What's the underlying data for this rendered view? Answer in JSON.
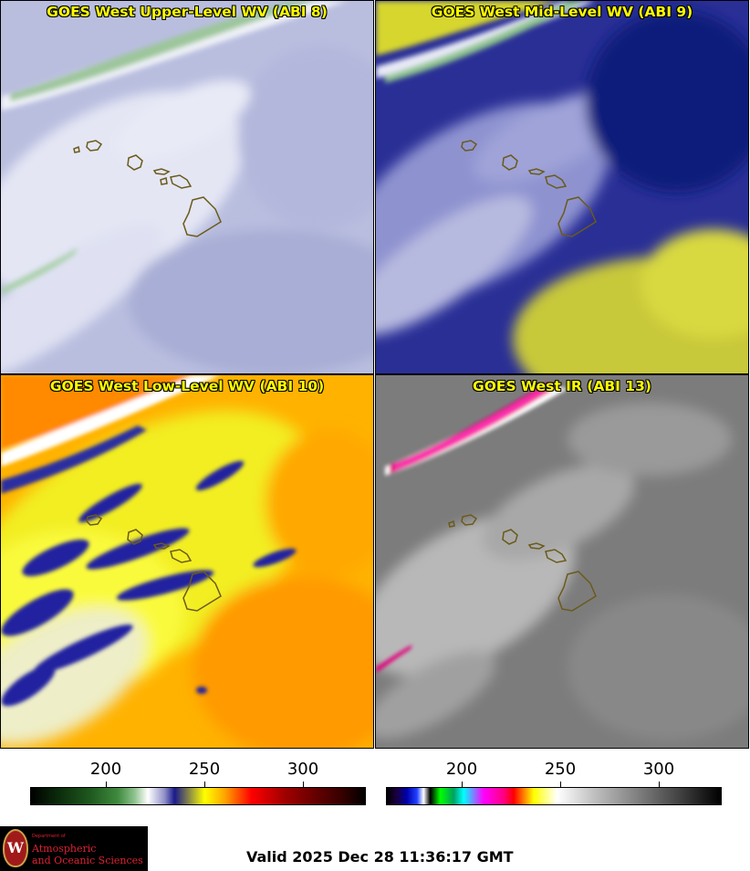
{
  "panels": [
    {
      "title": "GOES West Upper-Level WV (ABI 8)",
      "band": "ABI 8",
      "palette": "lavender"
    },
    {
      "title": "GOES West Mid-Level WV (ABI 9)",
      "band": "ABI 9",
      "palette": "navy-yellow"
    },
    {
      "title": "GOES West Low-Level WV (ABI 10)",
      "band": "ABI 10",
      "palette": "yellow-orange"
    },
    {
      "title": "GOES West IR (ABI 13)",
      "band": "ABI 13",
      "palette": "grayscale"
    }
  ],
  "colorbars": [
    {
      "ticks": [
        "200",
        "250",
        "300"
      ],
      "tick_values": [
        200,
        250,
        300
      ],
      "range": [
        165,
        335
      ]
    },
    {
      "ticks": [
        "200",
        "250",
        "300"
      ],
      "tick_values": [
        200,
        250,
        300
      ],
      "range": [
        165,
        335
      ]
    }
  ],
  "logo": {
    "small": "Department of",
    "line1": "Atmospheric",
    "line2": "and Oceanic Sciences",
    "seal_letter": "W"
  },
  "valid_text": "Valid 2025 Dec 28 11:36:17 GMT",
  "colors": {
    "title_text": "#ffff00",
    "outline": "#6b5a1a"
  }
}
